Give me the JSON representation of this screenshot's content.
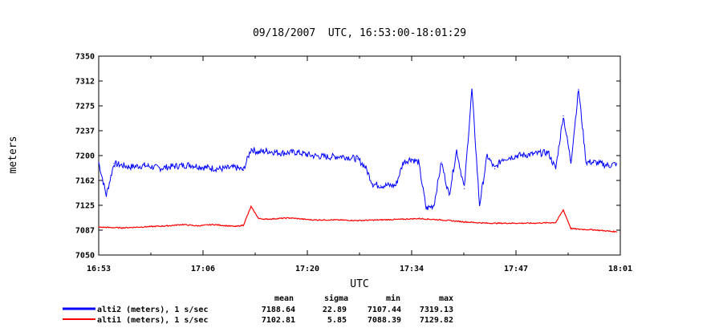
{
  "chart_data": {
    "type": "line",
    "title": "09/18/2007  UTC, 16:53:00-18:01:29",
    "xlabel": "UTC",
    "ylabel": "meters",
    "x_ticks": [
      "16:53",
      "17:06",
      "17:20",
      "17:34",
      "17:47",
      "18:01"
    ],
    "y_ticks": [
      "7050",
      "7087",
      "7125",
      "7162",
      "7200",
      "7237",
      "7275",
      "7312",
      "7350"
    ],
    "ylim": [
      7050,
      7350
    ],
    "xlim": [
      "16:53:00",
      "18:01:29"
    ],
    "grid": false,
    "legend_position": "bottom-left",
    "stat_headers": [
      "mean",
      "sigma",
      "min",
      "max"
    ],
    "series": [
      {
        "name": "alti2 (meters), 1 s/sec",
        "color": "#0000ff",
        "stats": [
          "7188.64",
          "22.89",
          "7107.44",
          "7319.13"
        ],
        "x": [
          "16:53",
          "16:54",
          "16:55",
          "16:57",
          "16:59",
          "17:01",
          "17:03",
          "17:05",
          "17:07",
          "17:09",
          "17:11",
          "17:12",
          "17:13",
          "17:14",
          "17:15",
          "17:17",
          "17:19",
          "17:21",
          "17:23",
          "17:25",
          "17:27",
          "17:28",
          "17:29",
          "17:30",
          "17:32",
          "17:33",
          "17:34",
          "17:35",
          "17:36",
          "17:37",
          "17:38",
          "17:39",
          "17:40",
          "17:41",
          "17:42",
          "17:43",
          "17:44",
          "17:45",
          "17:46",
          "17:48",
          "17:50",
          "17:52",
          "17:53",
          "17:54",
          "17:55",
          "17:56",
          "17:57",
          "17:58",
          "18:00",
          "18:01"
        ],
        "y": [
          7190,
          7140,
          7188,
          7183,
          7185,
          7181,
          7184,
          7186,
          7182,
          7180,
          7182,
          7178,
          7210,
          7205,
          7207,
          7204,
          7205,
          7200,
          7198,
          7199,
          7195,
          7183,
          7157,
          7155,
          7155,
          7190,
          7195,
          7190,
          7120,
          7125,
          7190,
          7140,
          7208,
          7150,
          7300,
          7125,
          7200,
          7180,
          7195,
          7200,
          7202,
          7205,
          7180,
          7260,
          7190,
          7300,
          7190,
          7190,
          7185,
          7188
        ]
      },
      {
        "name": "alti1 (meters), 1 s/sec",
        "color": "#ff0000",
        "stats": [
          "7102.81",
          "5.85",
          "7088.39",
          "7129.82"
        ],
        "x": [
          "16:53",
          "16:56",
          "16:58",
          "17:00",
          "17:02",
          "17:04",
          "17:06",
          "17:08",
          "17:10",
          "17:11",
          "17:12",
          "17:13",
          "17:14",
          "17:15",
          "17:18",
          "17:21",
          "17:24",
          "17:27",
          "17:30",
          "17:33",
          "17:35",
          "17:38",
          "17:41",
          "17:44",
          "17:47",
          "17:50",
          "17:53",
          "17:54",
          "17:55",
          "17:56",
          "17:58",
          "18:00",
          "18:01"
        ],
        "y": [
          7092,
          7091,
          7092,
          7093,
          7094,
          7096,
          7094,
          7096,
          7094,
          7093,
          7095,
          7123,
          7105,
          7104,
          7106,
          7103,
          7103,
          7102,
          7103,
          7104,
          7105,
          7103,
          7100,
          7098,
          7098,
          7098,
          7099,
          7118,
          7090,
          7089,
          7088,
          7086,
          7085
        ]
      }
    ]
  }
}
